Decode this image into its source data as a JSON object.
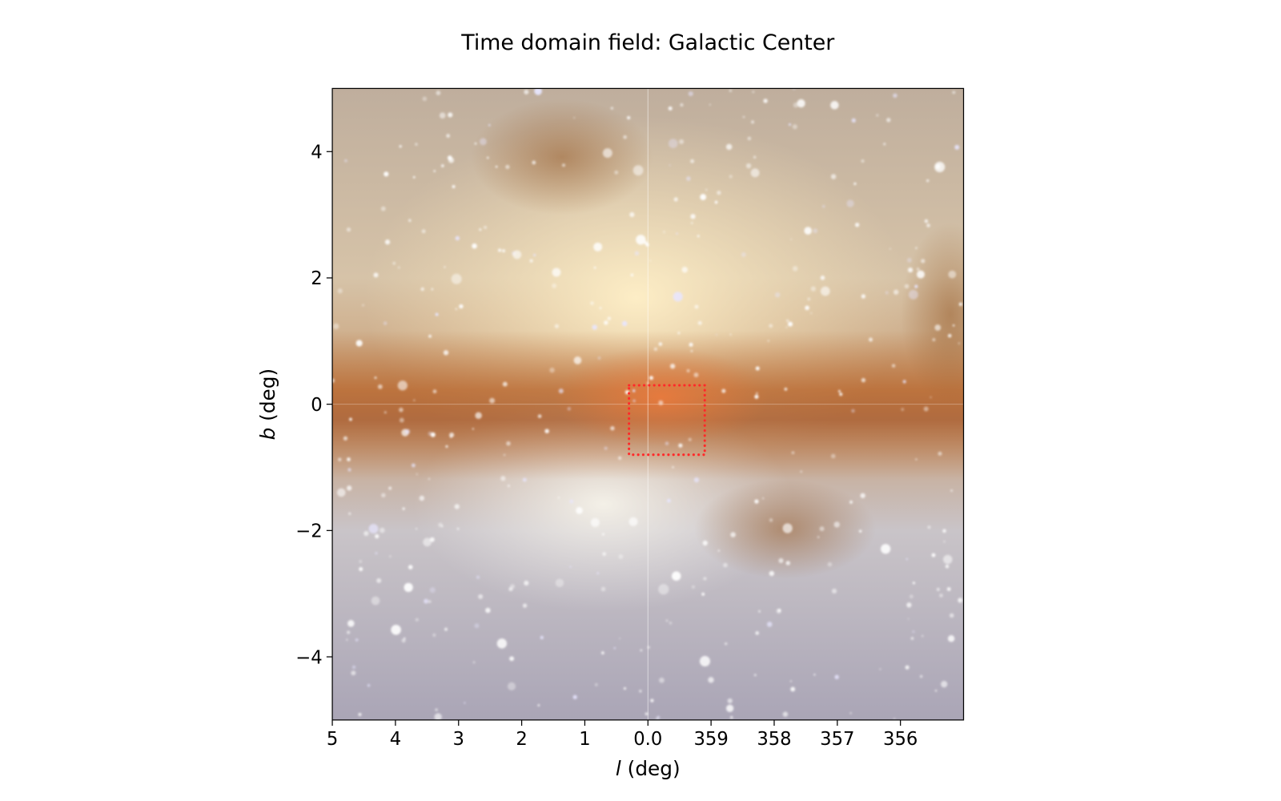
{
  "chart_data": {
    "type": "image",
    "title": "Time domain field: Galactic Center",
    "xlabel": {
      "symbol": "l",
      "unit": "(deg)"
    },
    "ylabel": {
      "symbol": "b",
      "unit": "(deg)"
    },
    "xlim": [
      5,
      -5
    ],
    "ylim": [
      -5,
      5
    ],
    "xticks": [
      5,
      4,
      3,
      2,
      1,
      {
        "value": 0,
        "label": "0.0"
      },
      {
        "value": -1,
        "label": "359"
      },
      {
        "value": -2,
        "label": "358"
      },
      {
        "value": -3,
        "label": "357"
      },
      {
        "value": -4,
        "label": "356"
      }
    ],
    "yticks": [
      {
        "value": -4,
        "label": "−4"
      },
      {
        "value": -2,
        "label": "−2"
      },
      0,
      2,
      4
    ],
    "region": {
      "xlim": [
        0.3,
        -0.9
      ],
      "ylim": [
        -0.8,
        0.3
      ],
      "color": "#ff2a2a",
      "linestyle": "dotted"
    }
  }
}
